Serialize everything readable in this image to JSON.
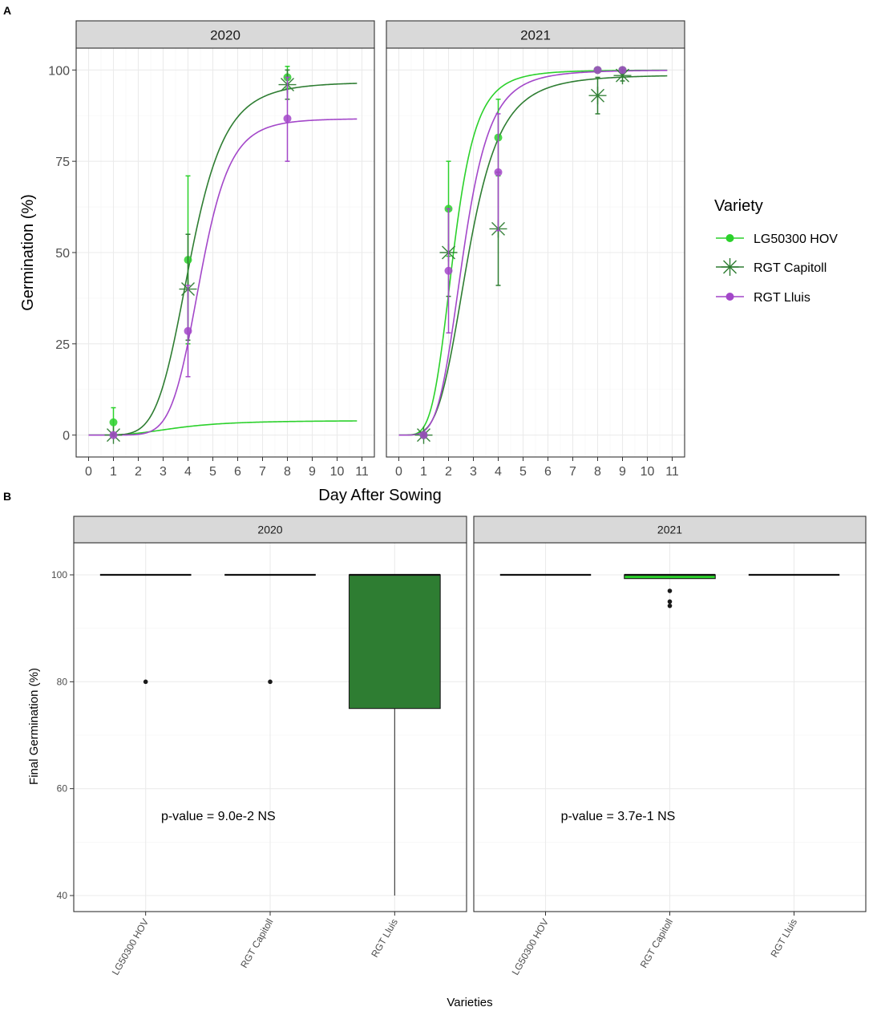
{
  "panel_tags": [
    "A",
    "B"
  ],
  "colors": {
    "LG50300 HOV": "#2bd12b",
    "RGT Capitoll": "#2e7d32",
    "RGT Lluis": "#a347c9"
  },
  "chart_data": [
    {
      "type": "line",
      "tag": "A",
      "xlabel": "Day After Sowing",
      "ylabel": "Germination (%)",
      "xlim": [
        -0.5,
        11.5
      ],
      "ylim": [
        -6,
        106
      ],
      "xticks": [
        0,
        1,
        2,
        3,
        4,
        5,
        6,
        7,
        8,
        9,
        10,
        11
      ],
      "yticks": [
        0,
        25,
        50,
        75,
        100
      ],
      "legend": {
        "title": "Variety",
        "position": "right",
        "entries": [
          "LG50300 HOV",
          "RGT Capitoll",
          "RGT Lluis"
        ]
      },
      "facets": [
        {
          "label": "2020",
          "series": [
            {
              "name": "LG50300 HOV",
              "marker": "circle",
              "curve": {
                "d": 4.0,
                "ed50": 3.6,
                "b": 3.2,
                "xmax": 10.8
              },
              "points": [
                {
                  "x": 1,
                  "y": 3.5,
                  "lo": 0,
                  "hi": 7.5
                },
                {
                  "x": 4,
                  "y": 48,
                  "lo": 25,
                  "hi": 71
                },
                {
                  "x": 8,
                  "y": 98,
                  "lo": 95,
                  "hi": 101
                }
              ]
            },
            {
              "name": "RGT Capitoll",
              "marker": "asterisk",
              "curve": {
                "d": 96.7,
                "ed50": 4.1,
                "b": 5.8,
                "xmax": 10.8
              },
              "points": [
                {
                  "x": 1,
                  "y": 0,
                  "lo": 0,
                  "hi": 0
                },
                {
                  "x": 4,
                  "y": 40,
                  "lo": 26,
                  "hi": 55
                },
                {
                  "x": 8,
                  "y": 96,
                  "lo": 92,
                  "hi": 100
                }
              ]
            },
            {
              "name": "RGT Lluis",
              "marker": "circle",
              "curve": {
                "d": 86.7,
                "ed50": 4.5,
                "b": 7.5,
                "xmax": 10.8
              },
              "points": [
                {
                  "x": 1,
                  "y": 0,
                  "lo": 0,
                  "hi": 0
                },
                {
                  "x": 4,
                  "y": 28.5,
                  "lo": 16,
                  "hi": 41
                },
                {
                  "x": 8,
                  "y": 86.7,
                  "lo": 75,
                  "hi": 98
                }
              ]
            }
          ]
        },
        {
          "label": "2021",
          "series": [
            {
              "name": "LG50300 HOV",
              "marker": "circle",
              "curve": {
                "d": 100,
                "ed50": 2.2,
                "b": 4.8,
                "xmax": 10.8
              },
              "points": [
                {
                  "x": 1,
                  "y": 0,
                  "lo": 0,
                  "hi": 0
                },
                {
                  "x": 2,
                  "y": 62,
                  "lo": 49,
                  "hi": 75
                },
                {
                  "x": 4,
                  "y": 81.5,
                  "lo": 71,
                  "hi": 92
                },
                {
                  "x": 8,
                  "y": 100,
                  "lo": 100,
                  "hi": 100
                },
                {
                  "x": 9,
                  "y": 100,
                  "lo": 100,
                  "hi": 100
                }
              ]
            },
            {
              "name": "RGT Capitoll",
              "marker": "asterisk",
              "curve": {
                "d": 98.7,
                "ed50": 2.8,
                "b": 4.3,
                "xmax": 10.8
              },
              "points": [
                {
                  "x": 1,
                  "y": 0,
                  "lo": 0,
                  "hi": 0
                },
                {
                  "x": 2,
                  "y": 50,
                  "lo": 38,
                  "hi": 62
                },
                {
                  "x": 4,
                  "y": 56.5,
                  "lo": 41,
                  "hi": 72
                },
                {
                  "x": 8,
                  "y": 93,
                  "lo": 88,
                  "hi": 98
                },
                {
                  "x": 9,
                  "y": 98.5,
                  "lo": 97,
                  "hi": 100
                }
              ]
            },
            {
              "name": "RGT Lluis",
              "marker": "circle",
              "curve": {
                "d": 100,
                "ed50": 2.6,
                "b": 4.8,
                "xmax": 10.8
              },
              "points": [
                {
                  "x": 1,
                  "y": 0,
                  "lo": 0,
                  "hi": 0
                },
                {
                  "x": 2,
                  "y": 45,
                  "lo": 28,
                  "hi": 62
                },
                {
                  "x": 4,
                  "y": 72,
                  "lo": 56,
                  "hi": 88
                },
                {
                  "x": 8,
                  "y": 100,
                  "lo": 100,
                  "hi": 100
                },
                {
                  "x": 9,
                  "y": 100,
                  "lo": 100,
                  "hi": 100
                }
              ]
            }
          ]
        }
      ]
    },
    {
      "type": "box",
      "tag": "B",
      "xlabel": "Varieties",
      "ylabel": "Final Germination (%)",
      "ylim": [
        37,
        106
      ],
      "yticks": [
        40,
        60,
        80,
        100
      ],
      "categories": [
        "LG50300 HOV",
        "RGT Capitoll",
        "RGT Lluis"
      ],
      "facets": [
        {
          "label": "2020",
          "annotation": "p-value =  9.0e-2 NS",
          "annotation_pos": [
            1.0,
            55
          ],
          "boxes": [
            {
              "category": "LG50300 HOV",
              "min": 100,
              "q1": 100,
              "median": 100,
              "q3": 100,
              "max": 100,
              "outliers": [
                80
              ],
              "fill": "#2bd12b"
            },
            {
              "category": "RGT Capitoll",
              "min": 100,
              "q1": 100,
              "median": 100,
              "q3": 100,
              "max": 100,
              "outliers": [
                80
              ],
              "fill": "#2e7d32"
            },
            {
              "category": "RGT Lluis",
              "min": 40,
              "q1": 75,
              "median": 100,
              "q3": 100,
              "max": 100,
              "outliers": [],
              "fill": "#2e7d32"
            }
          ]
        },
        {
          "label": "2021",
          "annotation": "p-value =  3.7e-1 NS",
          "annotation_pos": [
            1.0,
            55
          ],
          "boxes": [
            {
              "category": "LG50300 HOV",
              "min": 100,
              "q1": 100,
              "median": 100,
              "q3": 100,
              "max": 100,
              "outliers": [],
              "fill": "#2bd12b"
            },
            {
              "category": "RGT Capitoll",
              "min": 99.3,
              "q1": 99.3,
              "median": 100,
              "q3": 100,
              "max": 100,
              "outliers": [
                97,
                95,
                94.2
              ],
              "fill": "#2bd12b"
            },
            {
              "category": "RGT Lluis",
              "min": 100,
              "q1": 100,
              "median": 100,
              "q3": 100,
              "max": 100,
              "outliers": [],
              "fill": "#2e7d32"
            }
          ]
        }
      ]
    }
  ]
}
